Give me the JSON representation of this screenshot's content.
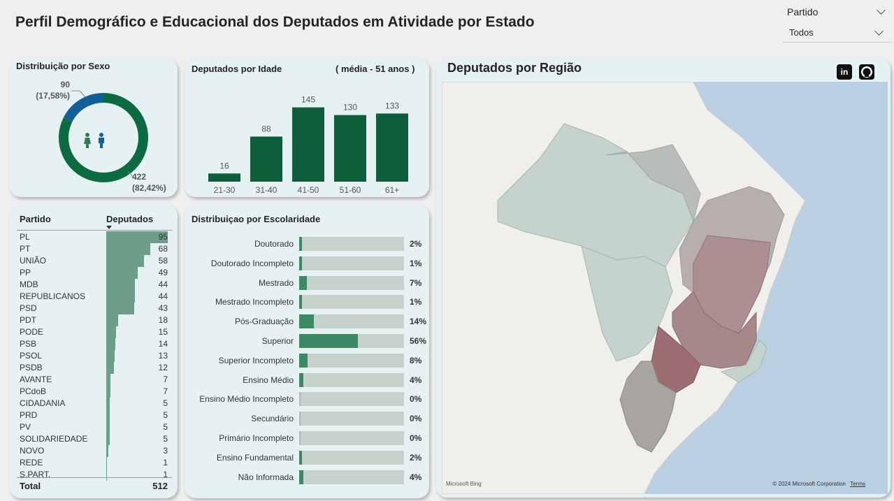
{
  "title": "Perfil Demográfico e Educacional dos Deputados em Atividade por Estado",
  "slicer": {
    "label": "Partido",
    "value": "Todos"
  },
  "sex_card": {
    "title": "Distribuição por Sexo",
    "female_count": "90",
    "female_pct": "(17,58%)",
    "male_count": "422",
    "male_pct": "(82,42%)"
  },
  "age_card": {
    "title": "Deputados por Idade",
    "subtitle": "( média - 51 anos )"
  },
  "table": {
    "col_party": "Partido",
    "col_deps": "Deputados",
    "total_label": "Total",
    "total_value": "512",
    "rows": [
      {
        "party": "PL",
        "value": 95
      },
      {
        "party": "PT",
        "value": 68
      },
      {
        "party": "UNIÃO",
        "value": 58
      },
      {
        "party": "PP",
        "value": 49
      },
      {
        "party": "MDB",
        "value": 44
      },
      {
        "party": "REPUBLICANOS",
        "value": 44
      },
      {
        "party": "PSD",
        "value": 43
      },
      {
        "party": "PDT",
        "value": 18
      },
      {
        "party": "PODE",
        "value": 15
      },
      {
        "party": "PSB",
        "value": 14
      },
      {
        "party": "PSOL",
        "value": 13
      },
      {
        "party": "PSDB",
        "value": 12
      },
      {
        "party": "AVANTE",
        "value": 7
      },
      {
        "party": "PCdoB",
        "value": 7
      },
      {
        "party": "CIDADANIA",
        "value": 5
      },
      {
        "party": "PRD",
        "value": 5
      },
      {
        "party": "PV",
        "value": 5
      },
      {
        "party": "SOLIDARIEDADE",
        "value": 5
      },
      {
        "party": "NOVO",
        "value": 3
      },
      {
        "party": "REDE",
        "value": 1
      },
      {
        "party": "S.PART.",
        "value": 1
      }
    ]
  },
  "edu_card": {
    "title": "Distribuiçao por Escolaridade"
  },
  "map_card": {
    "title": "Deputados por Região",
    "bing": "Microsoft Bing",
    "copyright": "© 2024 Microsoft Corporation",
    "terms": "Terms",
    "linkedin_icon": "in"
  },
  "colors": {
    "dark_green": "#0e5e3c",
    "male_green": "#0d6b41",
    "female_blue": "#10609a",
    "table_bar": "#6e9e89",
    "edu_fill": "#3c8a63",
    "edu_track": "#c6d2cc"
  },
  "chart_data": [
    {
      "type": "pie",
      "title": "Distribuição por Sexo",
      "categories": [
        "Feminino",
        "Masculino"
      ],
      "values": [
        90,
        422
      ]
    },
    {
      "type": "bar",
      "title": "Deputados por Idade",
      "categories": [
        "21-30",
        "31-40",
        "41-50",
        "51-60",
        "61+"
      ],
      "values": [
        16,
        88,
        145,
        130,
        133
      ]
    },
    {
      "type": "bar",
      "title": "Distribuiçao por Escolaridade",
      "categories": [
        "Doutorado",
        "Doutorado Incompleto",
        "Mestrado",
        "Mestrado Incompleto",
        "Pós-Graduação",
        "Superior",
        "Superior Incompleto",
        "Ensino Médio",
        "Ensino Médio Incompleto",
        "Secundário",
        "Primário Incompleto",
        "Ensino Fundamental",
        "Não Informada"
      ],
      "values": [
        2,
        1,
        7,
        1,
        14,
        56,
        8,
        4,
        0,
        0,
        0,
        2,
        4
      ],
      "labels": [
        "2%",
        "1%",
        "7%",
        "1%",
        "14%",
        "56%",
        "8%",
        "4%",
        "0%",
        "0%",
        "0%",
        "2%",
        "4%"
      ]
    }
  ]
}
